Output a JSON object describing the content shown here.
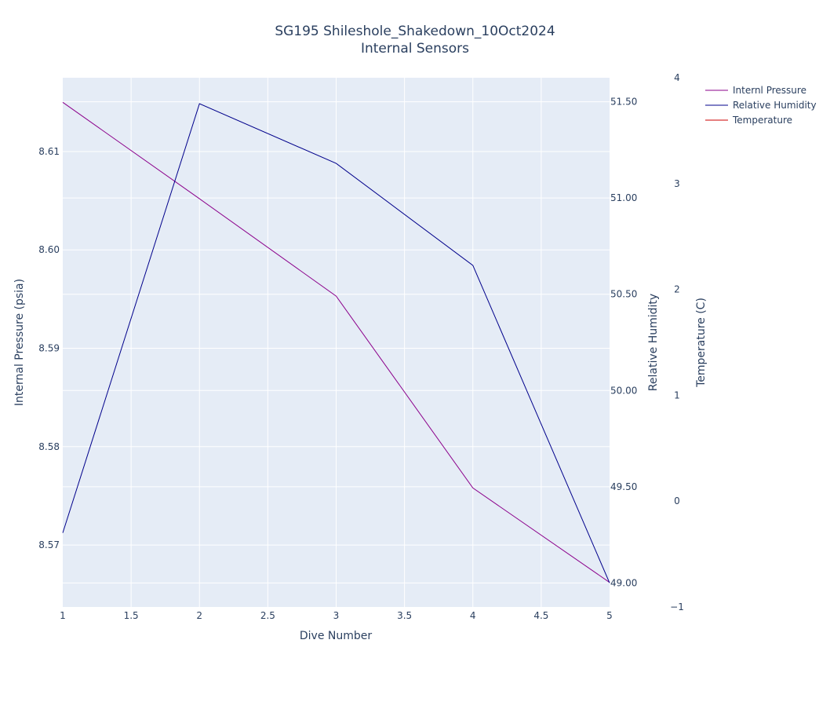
{
  "chart_data": {
    "type": "line",
    "title_line1": "SG195 Shileshole_Shakedown_10Oct2024",
    "title_line2": "Internal Sensors",
    "xlabel": "Dive Number",
    "xlim": [
      1,
      5
    ],
    "xticks": [
      "1",
      "1.5",
      "2",
      "2.5",
      "3",
      "3.5",
      "4",
      "4.5",
      "5"
    ],
    "y1": {
      "label": "Internal Pressure (psia)",
      "range": [
        8.5637,
        8.6175
      ],
      "ticks": [
        8.57,
        8.58,
        8.59,
        8.6,
        8.61
      ],
      "tick_labels": [
        "8.57",
        "8.58",
        "8.59",
        "8.60",
        "8.61"
      ]
    },
    "y2": {
      "label": "Relative Humidity",
      "range": [
        48.875,
        51.625
      ],
      "ticks": [
        49.0,
        49.5,
        50.0,
        50.5,
        51.0,
        51.5
      ],
      "tick_labels": [
        "49.00",
        "49.50",
        "50.00",
        "50.50",
        "51.00",
        "51.50"
      ]
    },
    "y3": {
      "label": "Temperature (C)",
      "range": [
        -1,
        4
      ],
      "ticks": [
        -1,
        0,
        1,
        2,
        3,
        4
      ],
      "tick_labels": [
        "−1",
        "0",
        "1",
        "2",
        "3",
        "4"
      ]
    },
    "series": [
      {
        "name": "Internl Pressure",
        "axis": "y1",
        "color": "#8b008b",
        "x": [
          1,
          2,
          3,
          4,
          5
        ],
        "y": [
          8.615,
          8.6052,
          8.5953,
          8.5758,
          8.5662
        ]
      },
      {
        "name": "Relative Humidity",
        "axis": "y2",
        "color": "#00008b",
        "x": [
          1,
          2,
          3,
          4,
          5
        ],
        "y": [
          49.26,
          51.49,
          51.18,
          50.65,
          49.0
        ]
      },
      {
        "name": "Temperature",
        "axis": "y3",
        "color": "#cc0000",
        "x": [],
        "y": []
      }
    ],
    "legend_position": "top-right",
    "plot_background": "#e5ecf6",
    "grid": true
  }
}
